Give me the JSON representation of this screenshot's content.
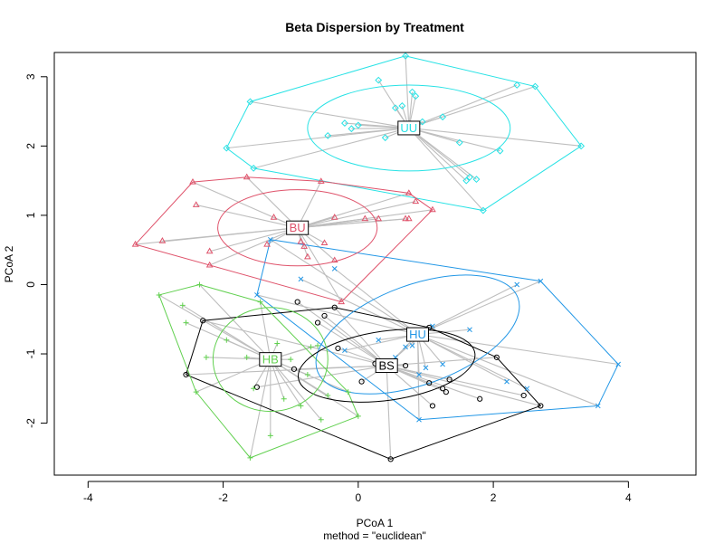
{
  "chart_data": {
    "type": "scatter",
    "title": "Beta Dispersion by Treatment",
    "xlabel": "PCoA 1",
    "sublabel": "method = \"euclidean\"",
    "ylabel": "PCoA 2",
    "xlim": [
      -4.5,
      5
    ],
    "ylim": [
      -2.75,
      3.35
    ],
    "x_ticks": [
      "-4",
      "-2",
      "0",
      "2",
      "4"
    ],
    "y_ticks": [
      "-2",
      "-1",
      "0",
      "1",
      "2",
      "3"
    ],
    "grid": false,
    "groups": [
      {
        "label": "UU",
        "color": "#28E2E5",
        "marker": "diamond",
        "centroid": [
          0.75,
          2.26
        ],
        "ellipse": {
          "rx": 1.5,
          "ry": 0.62,
          "angle": 0
        },
        "points": [
          [
            0.7,
            3.3
          ],
          [
            2.35,
            2.88
          ],
          [
            2.62,
            2.86
          ],
          [
            -1.6,
            2.64
          ],
          [
            3.3,
            2.0
          ],
          [
            -1.95,
            1.97
          ],
          [
            1.85,
            1.07
          ],
          [
            -1.55,
            1.68
          ],
          [
            0.3,
            2.95
          ],
          [
            0.8,
            2.78
          ],
          [
            0.85,
            2.72
          ],
          [
            0.55,
            2.55
          ],
          [
            0.0,
            2.3
          ],
          [
            -0.2,
            2.33
          ],
          [
            1.25,
            2.42
          ],
          [
            1.5,
            2.05
          ],
          [
            2.1,
            1.93
          ],
          [
            -0.45,
            2.15
          ],
          [
            1.75,
            1.52
          ],
          [
            1.6,
            1.5
          ],
          [
            0.65,
            2.58
          ],
          [
            0.4,
            2.12
          ],
          [
            -0.1,
            2.25
          ],
          [
            0.95,
            2.35
          ],
          [
            1.65,
            1.55
          ]
        ],
        "hull": [
          [
            0.7,
            3.3
          ],
          [
            2.62,
            2.86
          ],
          [
            3.3,
            2.0
          ],
          [
            1.85,
            1.07
          ],
          [
            -1.55,
            1.68
          ],
          [
            -1.95,
            1.97
          ],
          [
            -1.6,
            2.64
          ]
        ]
      },
      {
        "label": "BU",
        "color": "#DF536B",
        "marker": "triangle",
        "centroid": [
          -0.9,
          0.82
        ],
        "ellipse": {
          "rx": 1.18,
          "ry": 0.55,
          "angle": 0
        },
        "points": [
          [
            -3.3,
            0.58
          ],
          [
            -2.45,
            1.48
          ],
          [
            -1.65,
            1.55
          ],
          [
            -0.55,
            1.49
          ],
          [
            1.1,
            1.08
          ],
          [
            0.75,
            1.32
          ],
          [
            -2.4,
            1.15
          ],
          [
            -2.9,
            0.63
          ],
          [
            -0.25,
            -0.25
          ],
          [
            -0.95,
            0.85
          ],
          [
            -1.25,
            0.97
          ],
          [
            -0.35,
            0.97
          ],
          [
            0.1,
            0.95
          ],
          [
            0.85,
            1.2
          ],
          [
            0.75,
            0.95
          ],
          [
            -0.5,
            0.6
          ],
          [
            -0.85,
            0.62
          ],
          [
            -1.35,
            0.58
          ],
          [
            -2.2,
            0.48
          ],
          [
            -2.2,
            0.28
          ],
          [
            -0.75,
            0.4
          ],
          [
            -0.35,
            0.35
          ],
          [
            0.7,
            0.95
          ],
          [
            0.3,
            0.95
          ],
          [
            -0.8,
            0.55
          ]
        ],
        "hull": [
          [
            -3.3,
            0.58
          ],
          [
            -2.45,
            1.48
          ],
          [
            -1.65,
            1.55
          ],
          [
            -0.55,
            1.49
          ],
          [
            0.75,
            1.32
          ],
          [
            1.1,
            1.08
          ],
          [
            -0.25,
            -0.25
          ]
        ]
      },
      {
        "label": "HU",
        "color": "#2297E6",
        "marker": "x",
        "centroid": [
          0.88,
          -0.72
        ],
        "ellipse": {
          "rx": 1.58,
          "ry": 0.72,
          "angle": -20
        },
        "points": [
          [
            2.7,
            0.05
          ],
          [
            3.85,
            -1.15
          ],
          [
            3.55,
            -1.75
          ],
          [
            0.9,
            -1.95
          ],
          [
            -1.5,
            -0.15
          ],
          [
            -1.3,
            0.65
          ],
          [
            2.35,
            0.0
          ],
          [
            1.65,
            -0.65
          ],
          [
            1.1,
            -0.6
          ],
          [
            -0.35,
            0.23
          ],
          [
            -0.85,
            0.08
          ],
          [
            0.7,
            -0.9
          ],
          [
            0.55,
            -1.05
          ],
          [
            1.0,
            -1.2
          ],
          [
            1.25,
            -1.15
          ],
          [
            2.5,
            -1.5
          ],
          [
            0.3,
            -0.8
          ],
          [
            -0.2,
            -0.95
          ],
          [
            0.9,
            -1.3
          ],
          [
            2.2,
            -1.4
          ],
          [
            0.8,
            -0.88
          ]
        ],
        "hull": [
          [
            2.7,
            0.05
          ],
          [
            3.85,
            -1.15
          ],
          [
            3.55,
            -1.75
          ],
          [
            0.9,
            -1.95
          ],
          [
            -1.5,
            -0.15
          ],
          [
            -1.3,
            0.65
          ]
        ]
      },
      {
        "label": "BS",
        "color": "#000000",
        "marker": "circle",
        "centroid": [
          0.42,
          -1.17
        ],
        "ellipse": {
          "rx": 1.32,
          "ry": 0.5,
          "angle": -8
        },
        "points": [
          [
            -2.3,
            -0.52
          ],
          [
            -2.55,
            -1.3
          ],
          [
            0.48,
            -2.52
          ],
          [
            2.7,
            -1.75
          ],
          [
            2.45,
            -1.6
          ],
          [
            2.05,
            -1.05
          ],
          [
            1.05,
            -0.62
          ],
          [
            -0.35,
            -0.33
          ],
          [
            -0.5,
            -0.45
          ],
          [
            -0.6,
            -0.55
          ],
          [
            -0.9,
            -0.25
          ],
          [
            -0.3,
            -0.92
          ],
          [
            0.05,
            -1.4
          ],
          [
            0.3,
            -1.12
          ],
          [
            0.7,
            -1.17
          ],
          [
            1.05,
            -1.42
          ],
          [
            1.25,
            -1.5
          ],
          [
            1.3,
            -1.55
          ],
          [
            1.1,
            -1.75
          ],
          [
            1.8,
            -1.65
          ],
          [
            -1.5,
            -1.48
          ],
          [
            -0.95,
            -1.22
          ],
          [
            1.35,
            -1.37
          ],
          [
            0.25,
            -1.14
          ]
        ],
        "hull": [
          [
            -2.3,
            -0.52
          ],
          [
            -0.35,
            -0.33
          ],
          [
            1.05,
            -0.62
          ],
          [
            2.05,
            -1.05
          ],
          [
            2.7,
            -1.75
          ],
          [
            0.48,
            -2.52
          ],
          [
            -2.55,
            -1.3
          ]
        ]
      },
      {
        "label": "HB",
        "color": "#61D04F",
        "marker": "plus",
        "centroid": [
          -1.3,
          -1.08
        ],
        "ellipse": {
          "rx": 0.85,
          "ry": 0.75,
          "angle": 0
        },
        "points": [
          [
            -2.95,
            -0.15
          ],
          [
            -2.4,
            -1.55
          ],
          [
            -1.6,
            -2.5
          ],
          [
            -0.15,
            -1.55
          ],
          [
            0.0,
            -1.9
          ],
          [
            -1.45,
            -0.25
          ],
          [
            -2.35,
            0.0
          ],
          [
            -2.6,
            -0.3
          ],
          [
            -2.55,
            -0.55
          ],
          [
            -1.95,
            -0.8
          ],
          [
            -1.65,
            -1.05
          ],
          [
            -1.2,
            -0.85
          ],
          [
            -1.0,
            -1.08
          ],
          [
            -0.6,
            -0.88
          ],
          [
            -0.75,
            -1.3
          ],
          [
            -1.55,
            -1.5
          ],
          [
            -1.1,
            -1.65
          ],
          [
            -1.3,
            -2.18
          ],
          [
            -0.85,
            -1.75
          ],
          [
            -0.55,
            -1.95
          ],
          [
            -0.45,
            -1.6
          ],
          [
            -2.25,
            -1.05
          ],
          [
            -0.7,
            -0.9
          ]
        ],
        "hull": [
          [
            -2.95,
            -0.15
          ],
          [
            -2.35,
            0.0
          ],
          [
            -1.45,
            -0.25
          ],
          [
            -0.15,
            -1.55
          ],
          [
            0.0,
            -1.9
          ],
          [
            -1.6,
            -2.5
          ],
          [
            -2.4,
            -1.55
          ]
        ]
      }
    ]
  }
}
